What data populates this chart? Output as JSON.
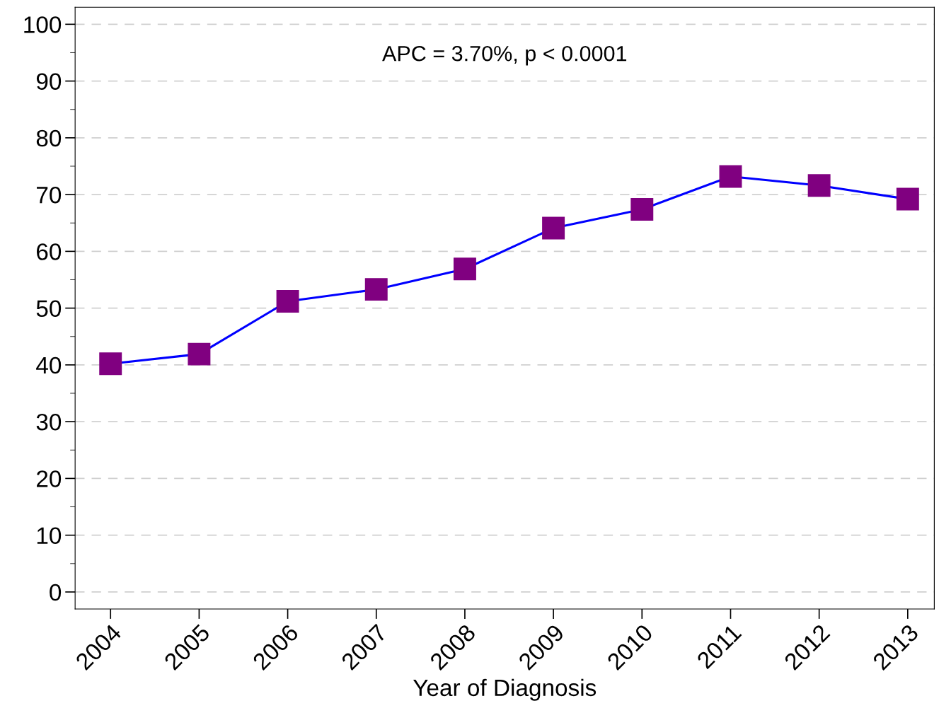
{
  "chart_data": {
    "type": "line",
    "xlabel": "Year of Diagnosis",
    "x": [
      2004,
      2005,
      2006,
      2007,
      2008,
      2009,
      2010,
      2011,
      2012,
      2013
    ],
    "series": [
      {
        "color": "#0000ff",
        "colors": [
          "#800080",
          "#800080",
          "#800080",
          "#800080",
          "#800080",
          "#800080",
          "#800080",
          "#800080",
          "#800080",
          "#800080"
        ],
        "values": [
          40.2,
          41.9,
          51.2,
          53.3,
          56.9,
          64.1,
          67.4,
          73.2,
          71.6,
          69.2
        ]
      }
    ],
    "marker": "square",
    "line_style": "solid",
    "xlim": [
      2003.6,
      2013.3
    ],
    "xticks": [
      2004,
      2005,
      2006,
      2007,
      2008,
      2009,
      2010,
      2011,
      2012,
      2013
    ],
    "ylim": [
      -3,
      103
    ],
    "yticks": [
      0,
      10,
      20,
      30,
      40,
      50,
      60,
      70,
      80,
      90,
      100
    ],
    "grid": "y",
    "annotations": [
      "APC = 3.70%, p < 0.0001"
    ]
  }
}
